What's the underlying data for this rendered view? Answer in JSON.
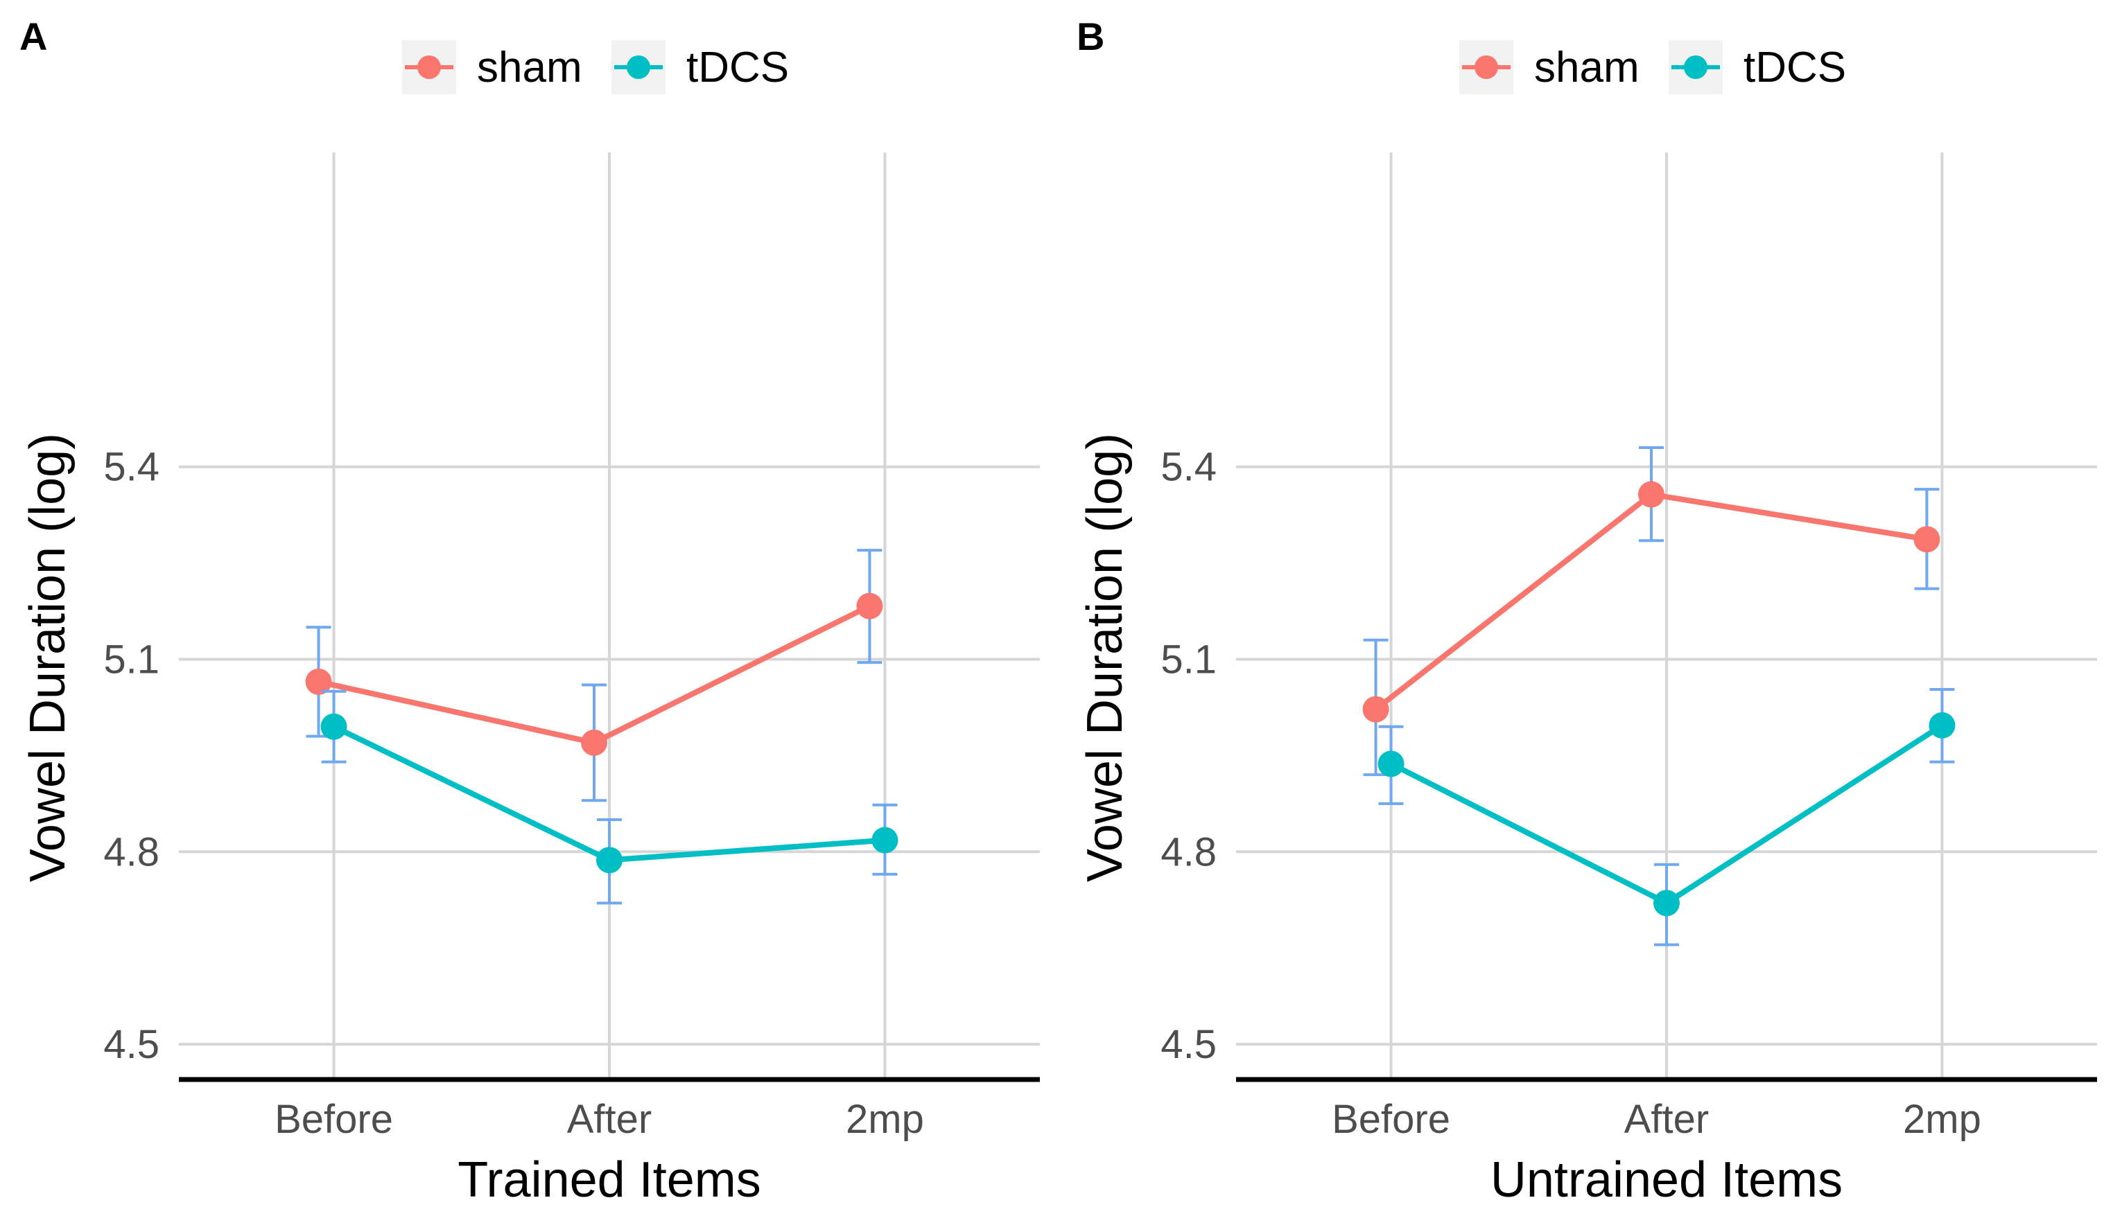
{
  "chart_data": [
    {
      "panel_label": "A",
      "type": "line",
      "title": "",
      "xlabel": "Trained Items",
      "ylabel": "Vowel Duration (log)",
      "categories": [
        "Before",
        "After",
        "2mp"
      ],
      "yticks": [
        "4.5",
        "4.8",
        "5.1",
        "5.4"
      ],
      "ylim": [
        4.445,
        5.89
      ],
      "grid": true,
      "legend": "top",
      "series": [
        {
          "name": "sham",
          "color": "#F8766D",
          "values": [
            5.065,
            4.97,
            5.183
          ],
          "err_low": [
            4.98,
            4.88,
            5.095
          ],
          "err_high": [
            5.15,
            5.06,
            5.27
          ]
        },
        {
          "name": "tDCS",
          "color": "#00BFC4",
          "values": [
            4.995,
            4.787,
            4.818
          ],
          "err_low": [
            4.94,
            4.72,
            4.765
          ],
          "err_high": [
            5.05,
            4.85,
            4.873
          ]
        }
      ]
    },
    {
      "panel_label": "B",
      "type": "line",
      "title": "",
      "xlabel": "Untrained Items",
      "ylabel": "Vowel Duration (log)",
      "categories": [
        "Before",
        "After",
        "2mp"
      ],
      "yticks": [
        "4.5",
        "4.8",
        "5.1",
        "5.4"
      ],
      "ylim": [
        4.445,
        5.89
      ],
      "grid": true,
      "legend": "top",
      "series": [
        {
          "name": "sham",
          "color": "#F8766D",
          "values": [
            5.022,
            5.357,
            5.287
          ],
          "err_low": [
            4.92,
            5.285,
            5.21
          ],
          "err_high": [
            5.13,
            5.43,
            5.365
          ]
        },
        {
          "name": "tDCS",
          "color": "#00BFC4",
          "values": [
            4.937,
            4.72,
            4.997
          ],
          "err_low": [
            4.875,
            4.655,
            4.94
          ],
          "err_high": [
            4.995,
            4.78,
            5.053
          ]
        }
      ]
    }
  ],
  "style": {
    "error_bar_color": "#6FA8F0",
    "grid_color": "#D6D6D6",
    "axis_text_color": "#4D4D4D",
    "legend_key_bg": "#F2F2F2"
  }
}
